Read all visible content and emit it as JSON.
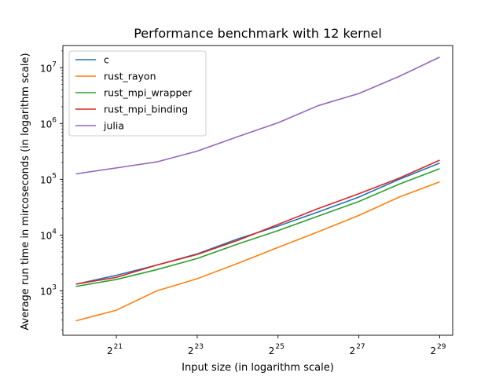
{
  "chart_data": {
    "type": "line",
    "title": "Performance benchmark with 12 kernel",
    "xlabel": "Input size (in logarithm scale)",
    "ylabel": "Average run time in mircoseconds (in logarithm scale)",
    "x_scale": "log2",
    "y_scale": "log10",
    "x": [
      1048576,
      2097152,
      4194304,
      8388608,
      16777216,
      33554432,
      67108864,
      134217728,
      268435456,
      536870912
    ],
    "xlim": [
      837861,
      671088640
    ],
    "ylim": [
      160,
      25000000
    ],
    "x_ticks": [
      {
        "value": 2097152,
        "base": "2",
        "exp": "21"
      },
      {
        "value": 8388608,
        "base": "2",
        "exp": "23"
      },
      {
        "value": 33554432,
        "base": "2",
        "exp": "25"
      },
      {
        "value": 134217728,
        "base": "2",
        "exp": "27"
      },
      {
        "value": 536870912,
        "base": "2",
        "exp": "29"
      }
    ],
    "y_ticks": [
      {
        "value": 1000,
        "base": "10",
        "exp": "3"
      },
      {
        "value": 10000,
        "base": "10",
        "exp": "4"
      },
      {
        "value": 100000,
        "base": "10",
        "exp": "5"
      },
      {
        "value": 1000000,
        "base": "10",
        "exp": "6"
      },
      {
        "value": 10000000,
        "base": "10",
        "exp": "7"
      }
    ],
    "grid": false,
    "legend_position": "top-left",
    "series": [
      {
        "name": "c",
        "color": "#1f77b4",
        "values": [
          1320,
          1900,
          2900,
          4600,
          8500,
          14500,
          26000,
          48000,
          100000,
          195000
        ]
      },
      {
        "name": "rust_rayon",
        "color": "#ff7f0e",
        "values": [
          290,
          450,
          1000,
          1650,
          3100,
          6000,
          11500,
          22500,
          48000,
          90000
        ]
      },
      {
        "name": "rust_mpi_wrapper",
        "color": "#2ca02c",
        "values": [
          1200,
          1600,
          2400,
          3800,
          6900,
          12000,
          22000,
          40000,
          82000,
          155000
        ]
      },
      {
        "name": "rust_mpi_binding",
        "color": "#d62728",
        "values": [
          1320,
          1750,
          2900,
          4500,
          8000,
          15500,
          30000,
          55000,
          105000,
          220000
        ]
      },
      {
        "name": "julia",
        "color": "#9467bd",
        "values": [
          125000,
          160000,
          205000,
          320000,
          580000,
          1030000,
          2100000,
          3450000,
          7000000,
          15500000
        ]
      }
    ]
  }
}
